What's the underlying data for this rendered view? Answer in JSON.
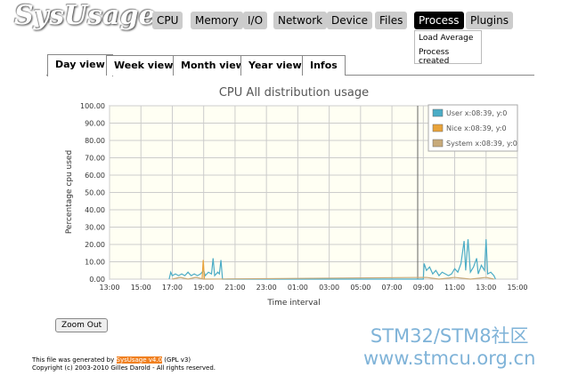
{
  "logo": "SysUsage",
  "nav": [
    "CPU",
    "Memory",
    "I/O",
    "Network",
    "Device",
    "Files",
    "Process",
    "Plugins"
  ],
  "dropdown": [
    "Load Average",
    "Process created"
  ],
  "tabs": [
    "Day view",
    "Week view",
    "Month view",
    "Year view",
    "Infos"
  ],
  "zoom_button": "Zoom Out",
  "footer": {
    "prefix": "This file was generated by",
    "link": "SysUsage v4.0",
    "suffix": "(GPL v3)",
    "copyright": "Copyright (c) 2003-2010 Gilles Darold - All rights reserved."
  },
  "watermark": [
    "STM32/STM8社区",
    "www.stmcu.org.cn"
  ],
  "chart_data": {
    "type": "line",
    "title": "CPU All distribution usage",
    "x_label": "Time interval",
    "y_label": "Percentage cpu used",
    "xlim": [
      0,
      26
    ],
    "xticks": [
      {
        "value": 0,
        "label": "13:00"
      },
      {
        "value": 2,
        "label": "15:00"
      },
      {
        "value": 4,
        "label": "17:00"
      },
      {
        "value": 6,
        "label": "19:00"
      },
      {
        "value": 8,
        "label": "21:00"
      },
      {
        "value": 10,
        "label": "23:00"
      },
      {
        "value": 12,
        "label": "01:00"
      },
      {
        "value": 14,
        "label": "03:00"
      },
      {
        "value": 16,
        "label": "05:00"
      },
      {
        "value": 18,
        "label": "07:00"
      },
      {
        "value": 20,
        "label": "09:00"
      },
      {
        "value": 22,
        "label": "11:00"
      },
      {
        "value": 24,
        "label": "13:00"
      },
      {
        "value": 26,
        "label": "15:00"
      }
    ],
    "ylim": [
      0,
      100
    ],
    "yticks": [
      {
        "value": 0,
        "label": "0.00"
      },
      {
        "value": 10,
        "label": "10.00"
      },
      {
        "value": 20,
        "label": "20.00"
      },
      {
        "value": 30,
        "label": "30.00"
      },
      {
        "value": 40,
        "label": "40.00"
      },
      {
        "value": 50,
        "label": "50.00"
      },
      {
        "value": 60,
        "label": "60.00"
      },
      {
        "value": 70,
        "label": "70.00"
      },
      {
        "value": 80,
        "label": "80.00"
      },
      {
        "value": 90,
        "label": "90.00"
      },
      {
        "value": 100,
        "label": "100.00"
      }
    ],
    "grid": true,
    "legend": "top-right",
    "series": [
      {
        "name": "User x:08:39, y:0",
        "color": "#4bacc6",
        "x": [
          3.8,
          3.9,
          4.0,
          4.2,
          4.4,
          4.6,
          4.8,
          5.0,
          5.2,
          5.4,
          5.6,
          5.8,
          6.0,
          6.1,
          6.3,
          6.5,
          6.6,
          6.7,
          6.9,
          7.0,
          7.1,
          7.2,
          20.0,
          20.05,
          20.2,
          20.4,
          20.6,
          20.8,
          21.0,
          21.2,
          21.4,
          21.6,
          21.8,
          22.0,
          22.2,
          22.4,
          22.6,
          22.7,
          22.85,
          23.0,
          23.2,
          23.4,
          23.5,
          23.7,
          23.9,
          24.0,
          24.1,
          24.3,
          24.5,
          24.6
        ],
        "values": [
          0,
          4,
          2,
          3,
          2,
          3,
          2,
          4,
          2,
          3,
          2,
          3,
          5,
          2,
          4,
          3,
          12,
          2,
          4,
          3,
          11,
          0,
          0,
          9,
          5,
          7,
          3,
          5,
          2,
          4,
          3,
          2,
          3,
          6,
          4,
          9,
          22,
          5,
          23,
          4,
          7,
          12,
          3,
          8,
          5,
          23,
          3,
          4,
          2,
          0
        ]
      },
      {
        "name": "Nice x:08:39, y:0",
        "color": "#e8a33b",
        "x": [
          5.9,
          5.97,
          6.05
        ],
        "values": [
          0,
          11,
          0
        ]
      },
      {
        "name": "System x:08:39, y:0",
        "color": "#c8aa7a",
        "x": [
          4.0,
          4.5,
          5.0,
          5.5,
          6.0,
          20.2,
          21.0,
          22.0,
          23.0,
          24.0,
          24.5
        ],
        "values": [
          0,
          1,
          0,
          1,
          0,
          1,
          0,
          1,
          0,
          1,
          0
        ]
      }
    ]
  }
}
